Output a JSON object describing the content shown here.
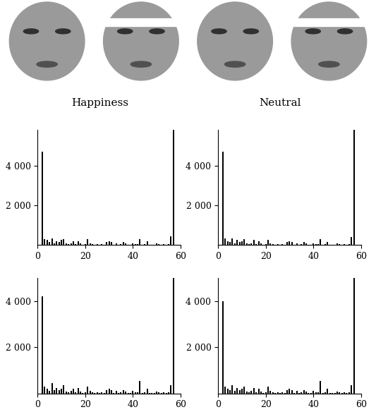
{
  "captions": [
    "Happiness",
    "Neutral"
  ],
  "chart_data": [
    {
      "type": "bar",
      "color": "#000000",
      "x": [
        2,
        3,
        4,
        5,
        6,
        7,
        8,
        9,
        10,
        11,
        12,
        13,
        14,
        15,
        16,
        17,
        18,
        19,
        20,
        21,
        22,
        23,
        24,
        25,
        26,
        27,
        28,
        29,
        30,
        31,
        32,
        33,
        34,
        35,
        36,
        37,
        38,
        39,
        40,
        41,
        42,
        43,
        44,
        45,
        46,
        47,
        48,
        49,
        50,
        51,
        52,
        53,
        54,
        55,
        56,
        57
      ],
      "values": [
        4700,
        300,
        250,
        150,
        350,
        100,
        200,
        150,
        250,
        300,
        80,
        50,
        100,
        200,
        50,
        200,
        80,
        30,
        50,
        300,
        100,
        50,
        30,
        60,
        30,
        40,
        20,
        150,
        200,
        150,
        30,
        100,
        20,
        50,
        150,
        80,
        30,
        30,
        100,
        50,
        60,
        300,
        30,
        50,
        200,
        20,
        30,
        20,
        80,
        40,
        20,
        50,
        30,
        60,
        450,
        5800
      ],
      "xlim": [
        0,
        60
      ],
      "xticks": [
        0,
        20,
        40,
        60
      ],
      "ylim": [
        0,
        5800
      ],
      "yticks": [
        {
          "value": 2000,
          "label": "2 000"
        },
        {
          "value": 4000,
          "label": "4 000"
        }
      ]
    },
    {
      "type": "bar",
      "color": "#000000",
      "x": [
        2,
        3,
        4,
        5,
        6,
        7,
        8,
        9,
        10,
        11,
        12,
        13,
        14,
        15,
        16,
        17,
        18,
        19,
        20,
        21,
        22,
        23,
        24,
        25,
        26,
        27,
        28,
        29,
        30,
        31,
        32,
        33,
        34,
        35,
        36,
        37,
        38,
        39,
        40,
        41,
        42,
        43,
        44,
        45,
        46,
        47,
        48,
        49,
        50,
        51,
        52,
        53,
        54,
        55,
        56,
        57
      ],
      "values": [
        4700,
        350,
        200,
        150,
        350,
        100,
        250,
        150,
        200,
        300,
        80,
        50,
        100,
        250,
        50,
        200,
        80,
        30,
        50,
        250,
        100,
        50,
        30,
        60,
        30,
        40,
        20,
        150,
        200,
        150,
        30,
        100,
        20,
        50,
        150,
        80,
        30,
        30,
        100,
        50,
        60,
        300,
        30,
        50,
        150,
        20,
        30,
        20,
        80,
        40,
        20,
        50,
        30,
        60,
        400,
        5800
      ],
      "xlim": [
        0,
        60
      ],
      "xticks": [
        0,
        20,
        40,
        60
      ],
      "ylim": [
        0,
        5800
      ],
      "yticks": [
        {
          "value": 2000,
          "label": "2 000"
        },
        {
          "value": 4000,
          "label": "4 000"
        }
      ]
    },
    {
      "type": "bar",
      "color": "#000000",
      "x": [
        2,
        3,
        4,
        5,
        6,
        7,
        8,
        9,
        10,
        11,
        12,
        13,
        14,
        15,
        16,
        17,
        18,
        19,
        20,
        21,
        22,
        23,
        24,
        25,
        26,
        27,
        28,
        29,
        30,
        31,
        32,
        33,
        34,
        35,
        36,
        37,
        38,
        39,
        40,
        41,
        42,
        43,
        44,
        45,
        46,
        47,
        48,
        49,
        50,
        51,
        52,
        53,
        54,
        55,
        56,
        57
      ],
      "values": [
        4200,
        300,
        200,
        100,
        450,
        150,
        250,
        150,
        200,
        350,
        80,
        50,
        100,
        200,
        50,
        250,
        80,
        30,
        50,
        300,
        100,
        50,
        30,
        60,
        30,
        40,
        20,
        150,
        200,
        150,
        30,
        100,
        20,
        50,
        150,
        80,
        30,
        30,
        100,
        50,
        60,
        550,
        30,
        50,
        200,
        20,
        30,
        20,
        80,
        40,
        20,
        50,
        30,
        60,
        350,
        5000
      ],
      "xlim": [
        0,
        60
      ],
      "xticks": [
        0,
        20,
        40,
        60
      ],
      "ylim": [
        0,
        5000
      ],
      "yticks": [
        {
          "value": 2000,
          "label": "2 000"
        },
        {
          "value": 4000,
          "label": "4 000"
        }
      ]
    },
    {
      "type": "bar",
      "color": "#000000",
      "x": [
        2,
        3,
        4,
        5,
        6,
        7,
        8,
        9,
        10,
        11,
        12,
        13,
        14,
        15,
        16,
        17,
        18,
        19,
        20,
        21,
        22,
        23,
        24,
        25,
        26,
        27,
        28,
        29,
        30,
        31,
        32,
        33,
        34,
        35,
        36,
        37,
        38,
        39,
        40,
        41,
        42,
        43,
        44,
        45,
        46,
        47,
        48,
        49,
        50,
        51,
        52,
        53,
        54,
        55,
        56,
        57
      ],
      "values": [
        4000,
        300,
        200,
        150,
        350,
        100,
        250,
        150,
        200,
        300,
        80,
        50,
        100,
        250,
        50,
        200,
        80,
        30,
        50,
        300,
        100,
        50,
        30,
        60,
        30,
        40,
        20,
        150,
        200,
        150,
        30,
        100,
        20,
        50,
        150,
        80,
        30,
        30,
        100,
        50,
        60,
        550,
        30,
        50,
        200,
        20,
        30,
        20,
        80,
        40,
        20,
        50,
        30,
        60,
        350,
        5000
      ],
      "xlim": [
        0,
        60
      ],
      "xticks": [
        0,
        20,
        40,
        60
      ],
      "ylim": [
        0,
        5000
      ],
      "yticks": [
        {
          "value": 2000,
          "label": "2 000"
        },
        {
          "value": 4000,
          "label": "4 000"
        }
      ]
    }
  ]
}
